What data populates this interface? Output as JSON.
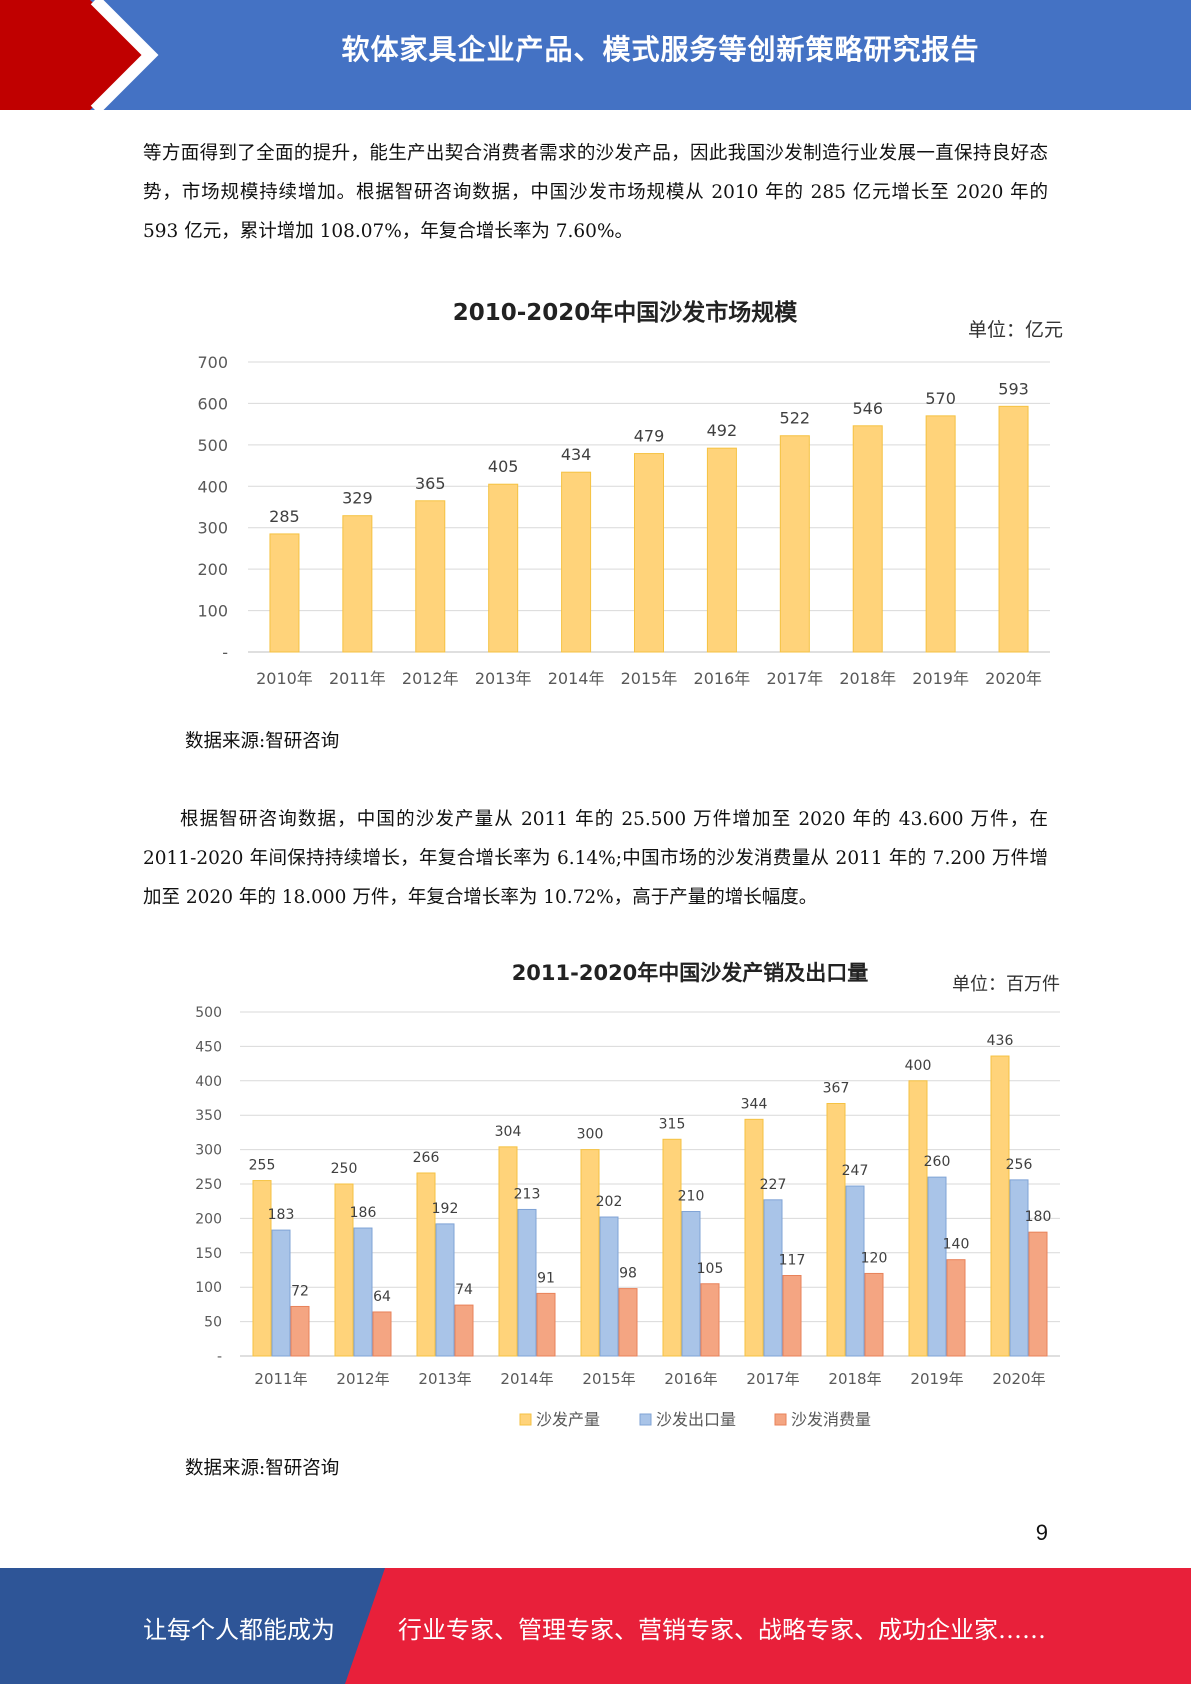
{
  "header": {
    "title": "软体家具企业产品、模式服务等创新策略研究报告"
  },
  "paragraphs": {
    "p1": "等方面得到了全面的提升，能生产出契合消费者需求的沙发产品，因此我国沙发制造行业发展一直保持良好态势，市场规模持续增加。根据智研咨询数据，中国沙发市场规模从 2010 年的 285 亿元增长至 2020 年的 593 亿元，累计增加 108.07%，年复合增长率为 7.60%。",
    "p2": "根据智研咨询数据，中国的沙发产量从 2011 年的 25.500 万件增加至 2020 年的 43.600 万件，在 2011-2020 年间保持持续增长，年复合增长率为 6.14%;中国市场的沙发消费量从 2011 年的 7.200 万件增加至 2020 年的 18.000 万件，年复合增长率为 10.72%，高于产量的增长幅度。"
  },
  "sources": {
    "s1": "数据来源:智研咨询",
    "s2": "数据来源:智研咨询"
  },
  "chart_data": [
    {
      "type": "bar",
      "title": "2010-2020年中国沙发市场规模",
      "unit": "单位：亿元",
      "categories": [
        "2010年",
        "2011年",
        "2012年",
        "2013年",
        "2014年",
        "2015年",
        "2016年",
        "2017年",
        "2018年",
        "2019年",
        "2020年"
      ],
      "values": [
        285,
        329,
        365,
        405,
        434,
        479,
        492,
        522,
        546,
        570,
        593
      ],
      "ylim": [
        0,
        700
      ],
      "yticks": [
        "-",
        "100",
        "200",
        "300",
        "400",
        "500",
        "600",
        "700"
      ],
      "grid": true,
      "color": "#FFD37A"
    },
    {
      "type": "bar",
      "title": "2011-2020年中国沙发产销及出口量",
      "unit": "单位：百万件",
      "categories": [
        "2011年",
        "2012年",
        "2013年",
        "2014年",
        "2015年",
        "2016年",
        "2017年",
        "2018年",
        "2019年",
        "2020年"
      ],
      "series": [
        {
          "name": "沙发产量",
          "values": [
            255,
            250,
            266,
            304,
            300,
            315,
            344,
            367,
            400,
            436
          ],
          "color": "#FFD37A"
        },
        {
          "name": "沙发出口量",
          "values": [
            183,
            186,
            192,
            213,
            202,
            210,
            227,
            247,
            260,
            256
          ],
          "color": "#A9C4E8"
        },
        {
          "name": "沙发消费量",
          "values": [
            72,
            64,
            74,
            91,
            98,
            105,
            117,
            120,
            140,
            180
          ],
          "color": "#F4A582"
        }
      ],
      "ylim": [
        0,
        500
      ],
      "yticks": [
        "-",
        "50",
        "100",
        "150",
        "200",
        "250",
        "300",
        "350",
        "400",
        "450",
        "500"
      ],
      "grid": true,
      "legend": "bottom"
    }
  ],
  "page_number": "9",
  "footer": {
    "left": "让每个人都能成为",
    "right": "行业专家、管理专家、营销专家、战略专家、成功企业家……"
  }
}
